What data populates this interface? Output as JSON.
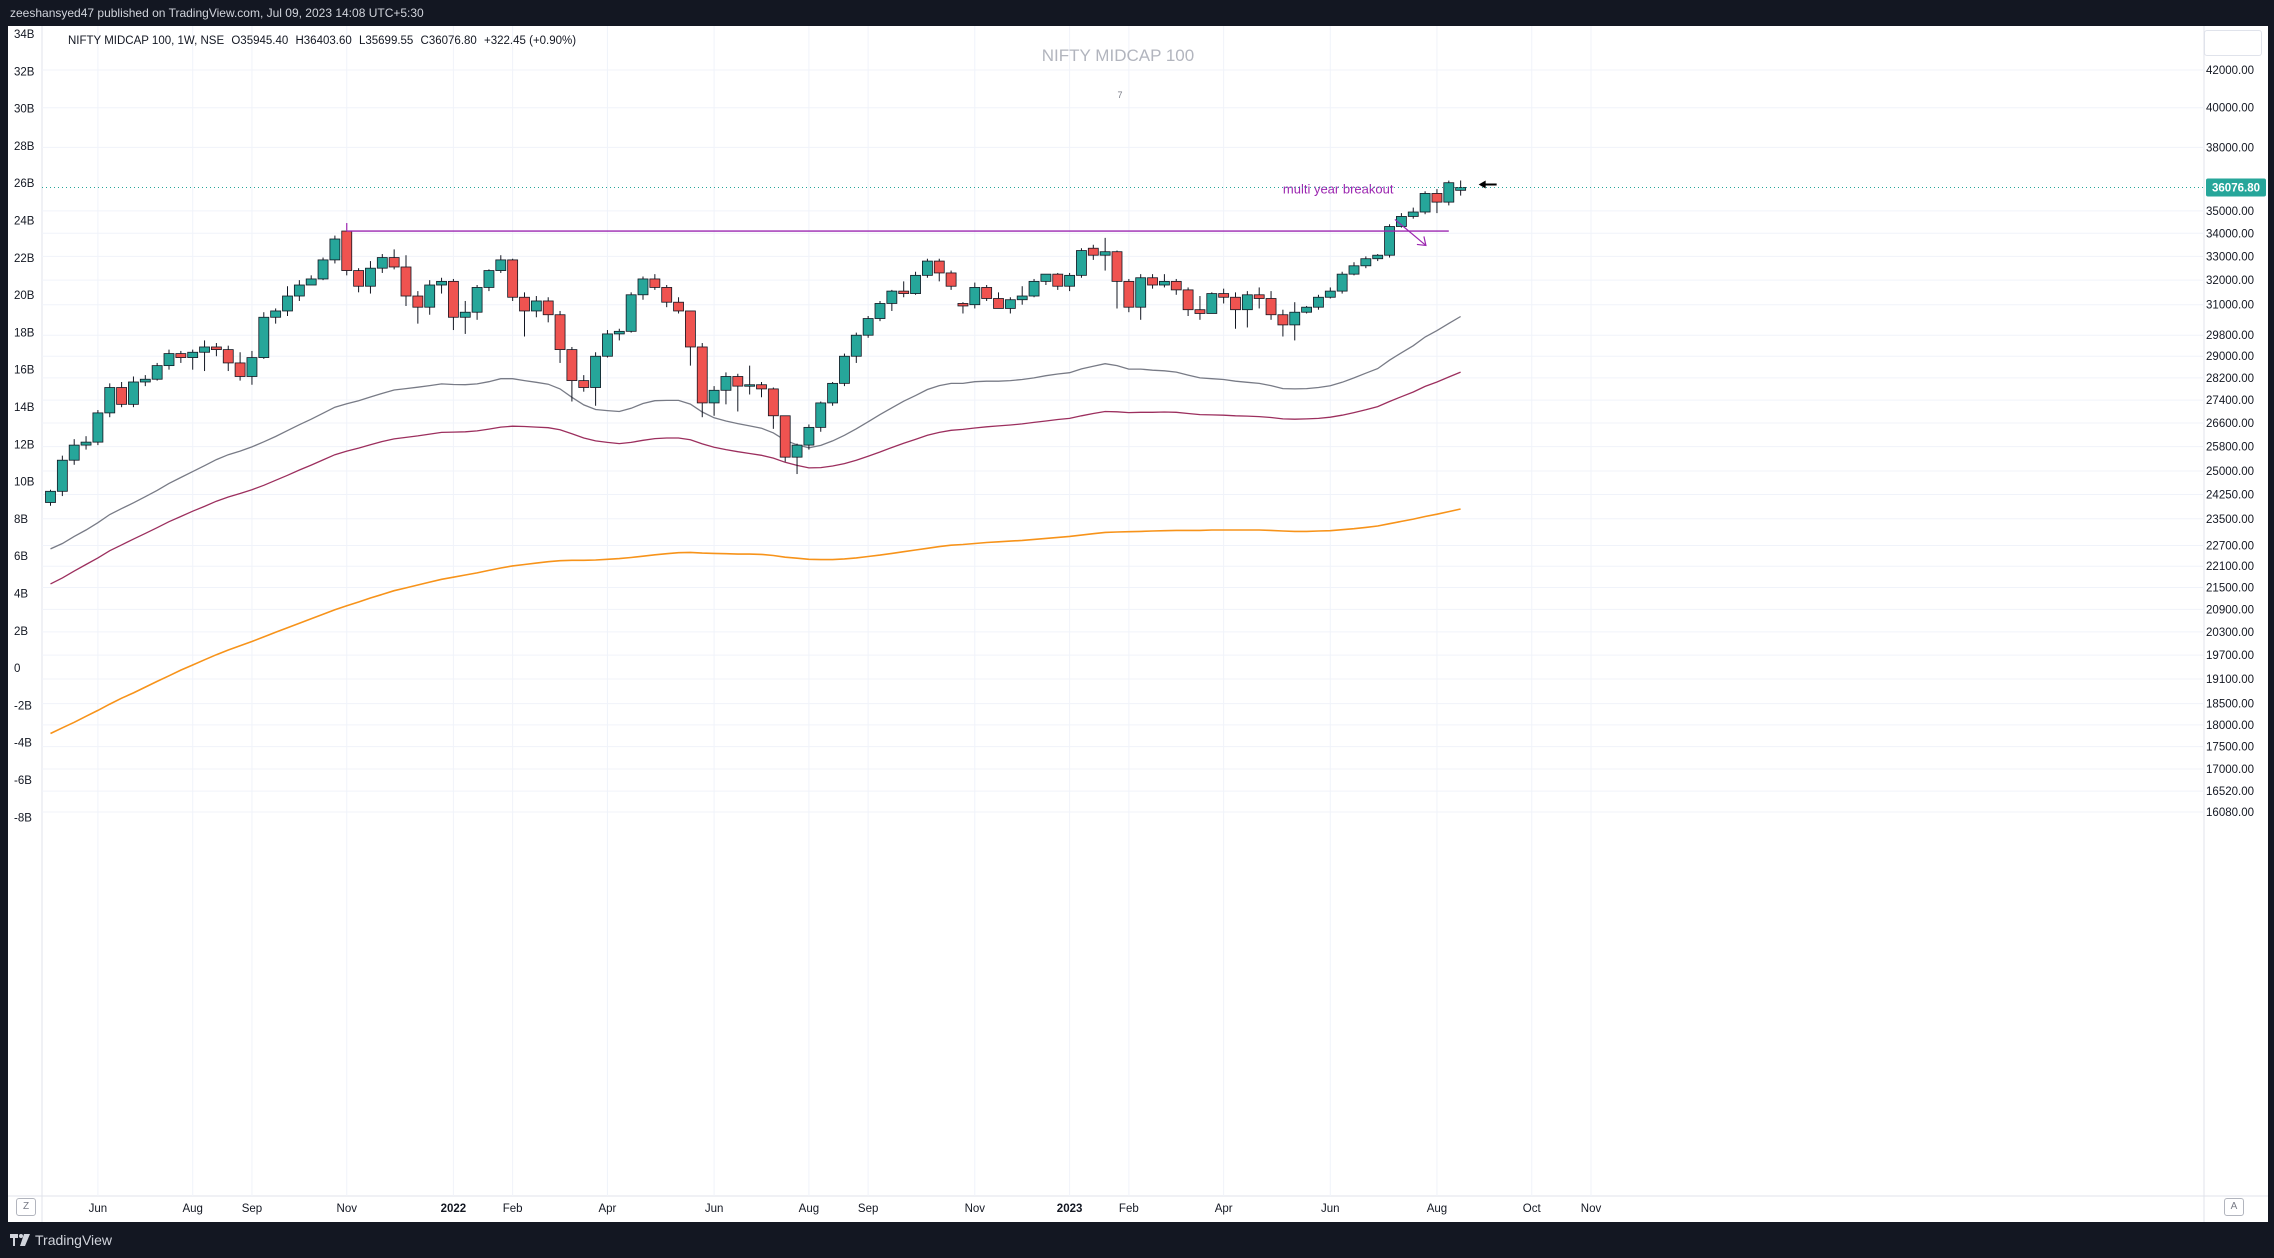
{
  "header": {
    "publisher_line": "zeeshansyed47 published on TradingView.com, Jul 09, 2023 14:08 UTC+5:30"
  },
  "legend": {
    "symbol": "NIFTY MIDCAP 100, 1W, NSE",
    "open": "O35945.40",
    "high": "H36403.60",
    "low": "L35699.55",
    "close": "C36076.80",
    "change": "+322.45 (+0.90%)"
  },
  "footer": {
    "brand": "TradingView"
  },
  "axis_buttons": {
    "left": "Z",
    "right": "A"
  },
  "colors": {
    "up": "#26a69a",
    "down": "#ef5350",
    "ema_fast": "#787b86",
    "ema_mid": "#9c2f5e",
    "ema_slow": "#f7931a",
    "resistance": "#9c27b0",
    "annotation": "#9c27b0",
    "price_tag": "#26a69a"
  },
  "chart_data": {
    "type": "candlestick",
    "title": "NIFTY MIDCAP 100",
    "subtitle": "7",
    "price_scale": "log",
    "ylim": [
      15800,
      43600
    ],
    "last_price": "36076.80",
    "left_axis_labels": [
      "34B",
      "32B",
      "30B",
      "28B",
      "26B",
      "24B",
      "22B",
      "20B",
      "18B",
      "16B",
      "14B",
      "12B",
      "10B",
      "8B",
      "6B",
      "4B",
      "2B",
      "0",
      "-2B",
      "-4B",
      "-6B",
      "-8B"
    ],
    "left_axis_values": [
      34,
      32,
      30,
      28,
      26,
      24,
      22,
      20,
      18,
      16,
      14,
      12,
      10,
      8,
      6,
      4,
      2,
      0,
      -2,
      -4,
      -6,
      -8
    ],
    "right_axis_labels": [
      "42000.00",
      "40000.00",
      "38000.00",
      "35000.00",
      "34000.00",
      "33000.00",
      "32000.00",
      "31000.00",
      "29800.00",
      "29000.00",
      "28200.00",
      "27400.00",
      "26600.00",
      "25800.00",
      "25000.00",
      "24250.00",
      "23500.00",
      "22700.00",
      "22100.00",
      "21500.00",
      "20900.00",
      "20300.00",
      "19700.00",
      "19100.00",
      "18500.00",
      "18000.00",
      "17500.00",
      "17000.00",
      "16520.00",
      "16080.00"
    ],
    "right_axis_values": [
      42000,
      40000,
      38000,
      35000,
      34000,
      33000,
      32000,
      31000,
      29800,
      29000,
      28200,
      27400,
      26600,
      25800,
      25000,
      24250,
      23500,
      22700,
      22100,
      21500,
      20900,
      20300,
      19700,
      19100,
      18500,
      18000,
      17500,
      17000,
      16520,
      16080
    ],
    "x_labels": [
      {
        "label": "Jun",
        "week": 4
      },
      {
        "label": "Aug",
        "week": 12
      },
      {
        "label": "Sep",
        "week": 17
      },
      {
        "label": "Nov",
        "week": 25
      },
      {
        "label": "2022",
        "week": 34
      },
      {
        "label": "Feb",
        "week": 39
      },
      {
        "label": "Apr",
        "week": 47
      },
      {
        "label": "Jun",
        "week": 56
      },
      {
        "label": "Aug",
        "week": 64
      },
      {
        "label": "Sep",
        "week": 69
      },
      {
        "label": "Nov",
        "week": 78
      },
      {
        "label": "2023",
        "week": 86
      },
      {
        "label": "Feb",
        "week": 91
      },
      {
        "label": "Apr",
        "week": 99
      },
      {
        "label": "Jun",
        "week": 108
      },
      {
        "label": "Aug",
        "week": 117
      },
      {
        "label": "Oct",
        "week": 125
      },
      {
        "label": "Nov",
        "week": 130
      }
    ],
    "candles": [
      [
        24000,
        24350,
        23900,
        24400
      ],
      [
        24350,
        25350,
        24200,
        25500
      ],
      [
        25350,
        25850,
        25200,
        26050
      ],
      [
        25850,
        25950,
        25700,
        26150
      ],
      [
        25950,
        26950,
        25850,
        27050
      ],
      [
        26950,
        27850,
        26800,
        28000
      ],
      [
        27850,
        27250,
        27150,
        28050
      ],
      [
        27250,
        28050,
        27150,
        28250
      ],
      [
        28050,
        28150,
        27900,
        28300
      ],
      [
        28150,
        28650,
        28100,
        28750
      ],
      [
        28650,
        29100,
        28500,
        29250
      ],
      [
        29100,
        28950,
        28750,
        29200
      ],
      [
        28950,
        29150,
        28500,
        29250
      ],
      [
        29150,
        29350,
        28450,
        29600
      ],
      [
        29350,
        29250,
        29000,
        29500
      ],
      [
        29250,
        28750,
        28450,
        29400
      ],
      [
        28750,
        28250,
        28100,
        29150
      ],
      [
        28250,
        28950,
        27950,
        29200
      ],
      [
        28950,
        30500,
        28900,
        30700
      ],
      [
        30500,
        30750,
        30250,
        30850
      ],
      [
        30750,
        31350,
        30550,
        31750
      ],
      [
        31350,
        31800,
        31150,
        32000
      ],
      [
        31800,
        32050,
        31800,
        32200
      ],
      [
        32050,
        32850,
        32000,
        32950
      ],
      [
        32850,
        33750,
        32700,
        33900
      ],
      [
        34100,
        32400,
        32200,
        34100
      ],
      [
        32400,
        31750,
        31500,
        32500
      ],
      [
        31750,
        32500,
        31450,
        32800
      ],
      [
        32500,
        32950,
        32300,
        33100
      ],
      [
        32950,
        32550,
        32450,
        33300
      ],
      [
        32550,
        31350,
        30950,
        33050
      ],
      [
        31350,
        30900,
        30250,
        31550
      ],
      [
        30900,
        31800,
        30600,
        32000
      ],
      [
        31800,
        31950,
        31450,
        32100
      ],
      [
        31950,
        30500,
        30000,
        32050
      ],
      [
        30500,
        30700,
        29850,
        31150
      ],
      [
        30700,
        31700,
        30400,
        31800
      ],
      [
        31700,
        32400,
        31550,
        32450
      ],
      [
        32400,
        32850,
        32300,
        33050
      ],
      [
        32850,
        31300,
        31150,
        32900
      ],
      [
        31300,
        30750,
        29750,
        31500
      ],
      [
        30750,
        31150,
        30500,
        31350
      ],
      [
        31150,
        30600,
        30300,
        31300
      ],
      [
        30600,
        29250,
        28750,
        30750
      ],
      [
        29250,
        28100,
        27350,
        29350
      ],
      [
        28100,
        27850,
        27700,
        28300
      ],
      [
        27850,
        29000,
        27200,
        29150
      ],
      [
        29000,
        29850,
        28950,
        30000
      ],
      [
        29850,
        29950,
        29600,
        30050
      ],
      [
        29950,
        31400,
        29900,
        31500
      ],
      [
        31400,
        32050,
        31200,
        32150
      ],
      [
        32050,
        31700,
        31600,
        32250
      ],
      [
        31700,
        31100,
        30900,
        31800
      ],
      [
        31100,
        30750,
        30650,
        31300
      ],
      [
        30750,
        29350,
        28650,
        30750
      ],
      [
        29350,
        27300,
        26800,
        29500
      ],
      [
        27300,
        27750,
        26850,
        27900
      ],
      [
        27750,
        28250,
        27250,
        28400
      ],
      [
        28250,
        27900,
        27000,
        28350
      ],
      [
        27900,
        27950,
        27600,
        28650
      ],
      [
        27950,
        27800,
        27500,
        28050
      ],
      [
        27800,
        26850,
        26400,
        27850
      ],
      [
        26850,
        25450,
        25300,
        26850
      ],
      [
        25450,
        25850,
        24900,
        25900
      ],
      [
        25850,
        26450,
        25700,
        26550
      ],
      [
        26450,
        27300,
        26300,
        27350
      ],
      [
        27300,
        28000,
        27200,
        28050
      ],
      [
        28000,
        29000,
        27900,
        29100
      ],
      [
        29000,
        29800,
        28750,
        29900
      ],
      [
        29800,
        30450,
        29700,
        30550
      ],
      [
        30450,
        31050,
        30350,
        31150
      ],
      [
        31050,
        31550,
        30750,
        31600
      ],
      [
        31550,
        31450,
        31300,
        31950
      ],
      [
        31450,
        32200,
        31400,
        32350
      ],
      [
        32200,
        32800,
        32100,
        32900
      ],
      [
        32800,
        32300,
        31950,
        32900
      ],
      [
        32300,
        31750,
        31600,
        32400
      ],
      [
        31050,
        30950,
        30650,
        31100
      ],
      [
        31000,
        31700,
        30850,
        31900
      ],
      [
        31700,
        31250,
        31150,
        31800
      ],
      [
        31250,
        30850,
        30850,
        31500
      ],
      [
        30850,
        31200,
        30650,
        31300
      ],
      [
        31200,
        31350,
        31000,
        31750
      ],
      [
        31350,
        31950,
        31300,
        32050
      ],
      [
        31950,
        32250,
        31800,
        32250
      ],
      [
        32250,
        31750,
        31600,
        32300
      ],
      [
        31750,
        32200,
        31550,
        32300
      ],
      [
        32200,
        33250,
        32100,
        33350
      ],
      [
        33350,
        33050,
        32850,
        33500
      ],
      [
        33050,
        33200,
        32400,
        33800
      ],
      [
        33200,
        31950,
        30850,
        33250
      ],
      [
        31950,
        30900,
        30700,
        32050
      ],
      [
        30900,
        32100,
        30400,
        32250
      ],
      [
        32100,
        31800,
        31650,
        32250
      ],
      [
        31800,
        31950,
        31700,
        32250
      ],
      [
        31950,
        31600,
        31400,
        32050
      ],
      [
        31600,
        30800,
        30550,
        31700
      ],
      [
        30800,
        30650,
        30400,
        31350
      ],
      [
        30650,
        31450,
        30650,
        31500
      ],
      [
        31450,
        31300,
        31050,
        31650
      ],
      [
        31300,
        30800,
        30050,
        31500
      ],
      [
        30800,
        31400,
        30100,
        31550
      ],
      [
        31400,
        31250,
        30850,
        31700
      ],
      [
        31250,
        30600,
        30400,
        31550
      ],
      [
        30600,
        30200,
        29750,
        30800
      ],
      [
        30200,
        30700,
        29600,
        31100
      ],
      [
        30700,
        30900,
        30650,
        30950
      ],
      [
        30900,
        31300,
        30800,
        31400
      ],
      [
        31300,
        31550,
        31250,
        31700
      ],
      [
        31550,
        32250,
        31450,
        32350
      ],
      [
        32250,
        32600,
        32200,
        32750
      ],
      [
        32600,
        32900,
        32500,
        33000
      ],
      [
        32900,
        33050,
        32800,
        33100
      ],
      [
        33050,
        34300,
        32950,
        34400
      ],
      [
        34300,
        34750,
        34250,
        34900
      ],
      [
        34750,
        34950,
        34650,
        35150
      ],
      [
        34950,
        35800,
        34850,
        35900
      ],
      [
        35800,
        35400,
        34900,
        36000
      ],
      [
        35400,
        36300,
        35250,
        36400
      ],
      [
        35945,
        36076,
        35700,
        36404
      ]
    ],
    "series": [
      {
        "name": "EMA 10",
        "values": [
          22600,
          22760,
          22970,
          23160,
          23380,
          23630,
          23810,
          23990,
          24180,
          24380,
          24600,
          24790,
          24980,
          25170,
          25370,
          25530,
          25650,
          25790,
          25960,
          26140,
          26340,
          26540,
          26730,
          26940,
          27150,
          27270,
          27380,
          27510,
          27640,
          27760,
          27810,
          27860,
          27920,
          27980,
          27960,
          27950,
          27980,
          28060,
          28170,
          28170,
          28100,
          28040,
          27970,
          27800,
          27500,
          27230,
          27070,
          27030,
          27000,
          27110,
          27280,
          27380,
          27390,
          27390,
          27260,
          26980,
          26780,
          26670,
          26580,
          26500,
          26420,
          26260,
          26010,
          25860,
          25760,
          25840,
          25990,
          26180,
          26400,
          26640,
          26890,
          27130,
          27360,
          27560,
          27780,
          27920,
          28000,
          28000,
          28060,
          28080,
          28080,
          28100,
          28140,
          28200,
          28280,
          28340,
          28390,
          28530,
          28630,
          28720,
          28650,
          28520,
          28520,
          28480,
          28460,
          28410,
          28300,
          28200,
          28170,
          28140,
          28080,
          28040,
          28000,
          27920,
          27810,
          27800,
          27810,
          27850,
          27910,
          28040,
          28200,
          28370,
          28540,
          28850,
          29130,
          29400,
          29730,
          29980,
          30260,
          30530
        ]
      },
      {
        "name": "EMA 20",
        "values": [
          21600,
          21770,
          21960,
          22150,
          22340,
          22550,
          22720,
          22890,
          23060,
          23230,
          23410,
          23570,
          23730,
          23880,
          24040,
          24170,
          24280,
          24400,
          24540,
          24700,
          24860,
          25030,
          25190,
          25360,
          25530,
          25650,
          25750,
          25860,
          25970,
          26060,
          26110,
          26160,
          26220,
          26280,
          26290,
          26300,
          26330,
          26390,
          26460,
          26490,
          26480,
          26460,
          26440,
          26370,
          26230,
          26090,
          25990,
          25940,
          25900,
          25940,
          26010,
          26070,
          26090,
          26090,
          26030,
          25890,
          25780,
          25700,
          25630,
          25570,
          25510,
          25420,
          25280,
          25180,
          25100,
          25110,
          25160,
          25240,
          25350,
          25480,
          25620,
          25770,
          25910,
          26040,
          26180,
          26280,
          26350,
          26380,
          26430,
          26470,
          26500,
          26530,
          26570,
          26620,
          26670,
          26720,
          26760,
          26850,
          26930,
          27000,
          26990,
          26960,
          26970,
          26970,
          26980,
          26970,
          26930,
          26890,
          26880,
          26870,
          26850,
          26840,
          26820,
          26790,
          26740,
          26730,
          26740,
          26760,
          26800,
          26870,
          26960,
          27060,
          27170,
          27350,
          27520,
          27690,
          27890,
          28050,
          28230,
          28410
        ]
      },
      {
        "name": "EMA 50",
        "values": [
          17800,
          17930,
          18060,
          18200,
          18340,
          18490,
          18630,
          18760,
          18900,
          19040,
          19180,
          19320,
          19450,
          19580,
          19710,
          19830,
          19940,
          20050,
          20170,
          20290,
          20410,
          20530,
          20650,
          20770,
          20890,
          21000,
          21100,
          21210,
          21310,
          21410,
          21490,
          21570,
          21650,
          21730,
          21790,
          21850,
          21910,
          21980,
          22050,
          22110,
          22150,
          22190,
          22230,
          22260,
          22270,
          22270,
          22280,
          22300,
          22320,
          22350,
          22390,
          22430,
          22460,
          22490,
          22500,
          22480,
          22470,
          22460,
          22450,
          22450,
          22440,
          22410,
          22360,
          22330,
          22300,
          22290,
          22290,
          22310,
          22340,
          22380,
          22420,
          22470,
          22520,
          22570,
          22620,
          22670,
          22710,
          22730,
          22760,
          22790,
          22810,
          22830,
          22850,
          22880,
          22910,
          22940,
          22970,
          23010,
          23050,
          23090,
          23100,
          23110,
          23120,
          23130,
          23140,
          23150,
          23150,
          23150,
          23160,
          23160,
          23160,
          23160,
          23160,
          23150,
          23130,
          23120,
          23120,
          23130,
          23140,
          23170,
          23200,
          23240,
          23280,
          23350,
          23420,
          23490,
          23570,
          23640,
          23720,
          23800
        ]
      }
    ],
    "resistance_line": {
      "value": 34100,
      "from_week": 25,
      "to_week": 118
    },
    "annotations": [
      {
        "text": "multi year breakout",
        "week": 104,
        "price": 35800
      }
    ]
  }
}
